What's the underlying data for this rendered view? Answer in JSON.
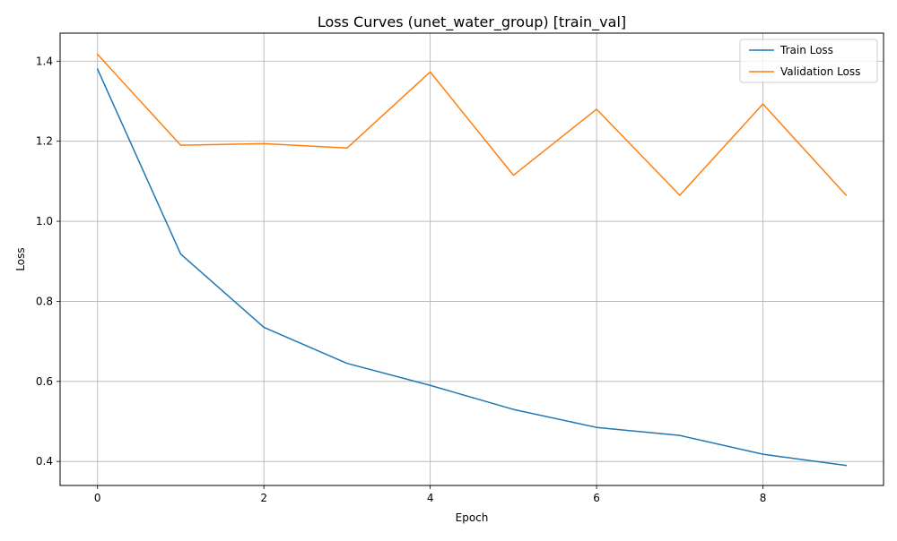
{
  "chart_data": {
    "type": "line",
    "title": "Loss Curves (unet_water_group) [train_val]",
    "xlabel": "Epoch",
    "ylabel": "Loss",
    "xlim": [
      -0.45,
      9.45
    ],
    "ylim": [
      0.34,
      1.47
    ],
    "xticks": [
      0,
      2,
      4,
      6,
      8
    ],
    "yticks": [
      0.4,
      0.6,
      0.8,
      1.0,
      1.2,
      1.4
    ],
    "xtick_labels": [
      "0",
      "2",
      "4",
      "6",
      "8"
    ],
    "ytick_labels": [
      "0.4",
      "0.6",
      "0.8",
      "1.0",
      "1.2",
      "1.4"
    ],
    "grid": true,
    "legend_position": "top-right",
    "x": [
      0,
      1,
      2,
      3,
      4,
      5,
      6,
      7,
      8,
      9
    ],
    "series": [
      {
        "name": "Train Loss",
        "color": "#1f77b4",
        "values": [
          1.38,
          0.918,
          0.735,
          0.645,
          0.59,
          0.53,
          0.485,
          0.465,
          0.418,
          0.39
        ]
      },
      {
        "name": "Validation Loss",
        "color": "#ff7f0e",
        "values": [
          1.417,
          1.19,
          1.194,
          1.183,
          1.373,
          1.115,
          1.28,
          1.065,
          1.293,
          1.065
        ]
      }
    ]
  }
}
